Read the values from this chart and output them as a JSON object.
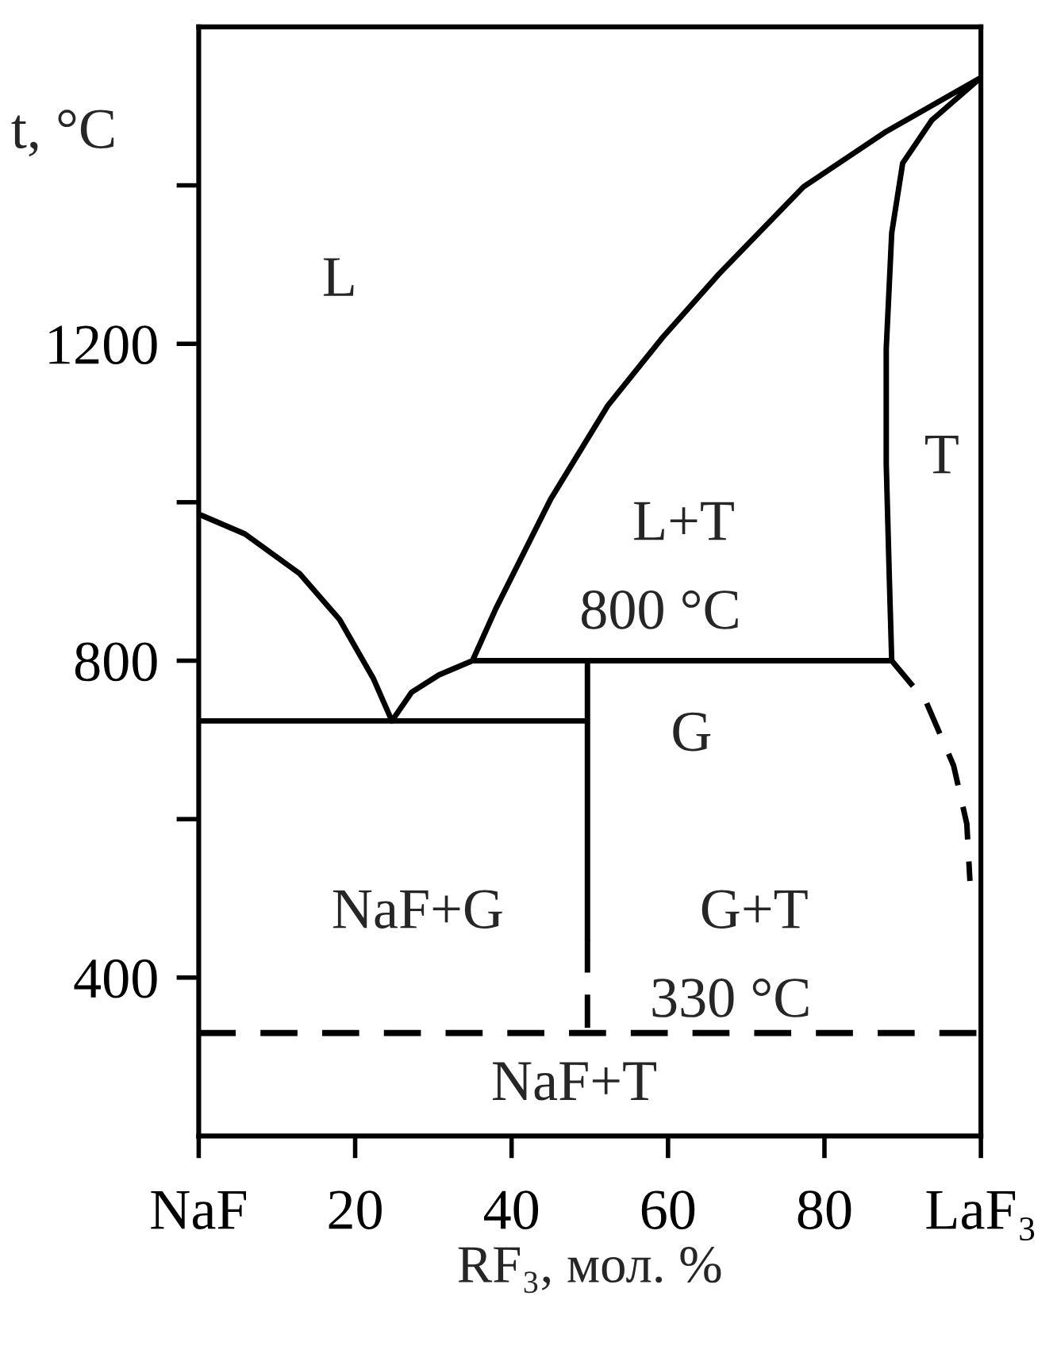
{
  "chart_data": {
    "type": "line",
    "xlabel": "RF₃, мол. %",
    "ylabel": "t, °C",
    "xlim": [
      0,
      100
    ],
    "ylim": [
      200,
      1600
    ],
    "xticks": [
      {
        "value": 0,
        "label": "NaF"
      },
      20,
      40,
      60,
      80,
      {
        "value": 100,
        "label": "LaF₃"
      }
    ],
    "yticks": [
      400,
      {
        "value": 600,
        "label": null
      },
      800,
      {
        "value": 1000,
        "label": null
      },
      1200,
      {
        "value": 1400,
        "label": null
      }
    ],
    "grid": false,
    "marker": "none",
    "series": [
      {
        "color": "#000000",
        "line_style": "solid",
        "x": [
          0,
          5.9,
          12.9,
          18,
          22.3,
          24.7,
          27.2,
          30.7,
          35,
          88.6,
          88.3,
          87.9,
          87.9,
          88.6,
          90,
          93.7,
          100,
          87.9,
          77.3,
          66.5,
          59.3,
          52.3,
          45,
          38,
          35
        ],
        "values": [
          985,
          960,
          910,
          852,
          778,
          724,
          760,
          782,
          800,
          800,
          902,
          1048,
          1194,
          1340,
          1428,
          1482,
          1536,
          1468,
          1398,
          1288,
          1208,
          1122,
          1004,
          866,
          800
        ]
      },
      {
        "color": "#000000",
        "line_style": "solid",
        "x": [
          0,
          49.7,
          49.7,
          49.7
        ],
        "values": [
          724,
          724,
          800,
          448
        ]
      },
      {
        "color": "#000000",
        "line_style": "dashed",
        "x": [
          49.7,
          49.7
        ],
        "values": [
          448,
          330
        ]
      },
      {
        "color": "#000000",
        "line_style": "dashed",
        "x": [
          88.6,
          93,
          96.5,
          98.2,
          98.6
        ],
        "values": [
          800,
          748,
          668,
          594,
          522
        ]
      }
    ],
    "ref_lines": [
      {
        "axis": "y",
        "value": 330,
        "color": "#000000",
        "line_style": "dashed"
      }
    ],
    "annotations": [
      "L",
      "T",
      "L+T",
      "800 °C",
      "G",
      "NaF+G",
      "G+T",
      "330 °C",
      "NaF+T"
    ]
  }
}
